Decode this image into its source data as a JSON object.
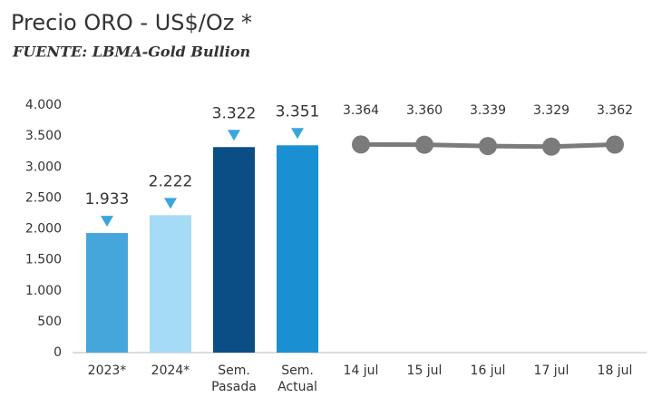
{
  "chart_data": {
    "type": "bar",
    "title": "Precio ORO - US$/Oz *",
    "subtitle": "FUENTE: LBMA-Gold Bullion",
    "categories": [
      "2023*",
      "2024*",
      "Sem. Pasada",
      "Sem. Actual",
      "14 jul",
      "15 jul",
      "16 jul",
      "17 jul",
      "18 jul"
    ],
    "series": [
      {
        "type": "bar",
        "values": [
          1933,
          2222,
          3322,
          3351,
          null,
          null,
          null,
          null,
          null
        ],
        "value_labels": [
          "1.933",
          "2.222",
          "3.322",
          "3.351",
          null,
          null,
          null,
          null,
          null
        ],
        "colors": [
          "#45a6dc",
          "#a6dbf5",
          "#0b4e86",
          "#1a90d2",
          null,
          null,
          null,
          null,
          null
        ]
      },
      {
        "type": "line",
        "values": [
          null,
          null,
          null,
          null,
          3364,
          3360,
          3339,
          3329,
          3362
        ],
        "value_labels": [
          null,
          null,
          null,
          null,
          "3.364",
          "3.360",
          "3.339",
          "3.329",
          "3.362"
        ],
        "color": "#7b7b7b"
      }
    ],
    "marker_color": "#3aa6dc",
    "ylim": [
      0,
      4000
    ],
    "yticks": [
      0,
      500,
      {
        "value": 1000,
        "label": "1.000"
      },
      {
        "value": 1500,
        "label": "1.500"
      },
      {
        "value": 2000,
        "label": "2.000"
      },
      {
        "value": 2500,
        "label": "2.500"
      },
      {
        "value": 3000,
        "label": "3.000"
      },
      {
        "value": 3500,
        "label": "3.500"
      },
      {
        "value": 4000,
        "label": "4.000"
      }
    ],
    "grid": false
  }
}
